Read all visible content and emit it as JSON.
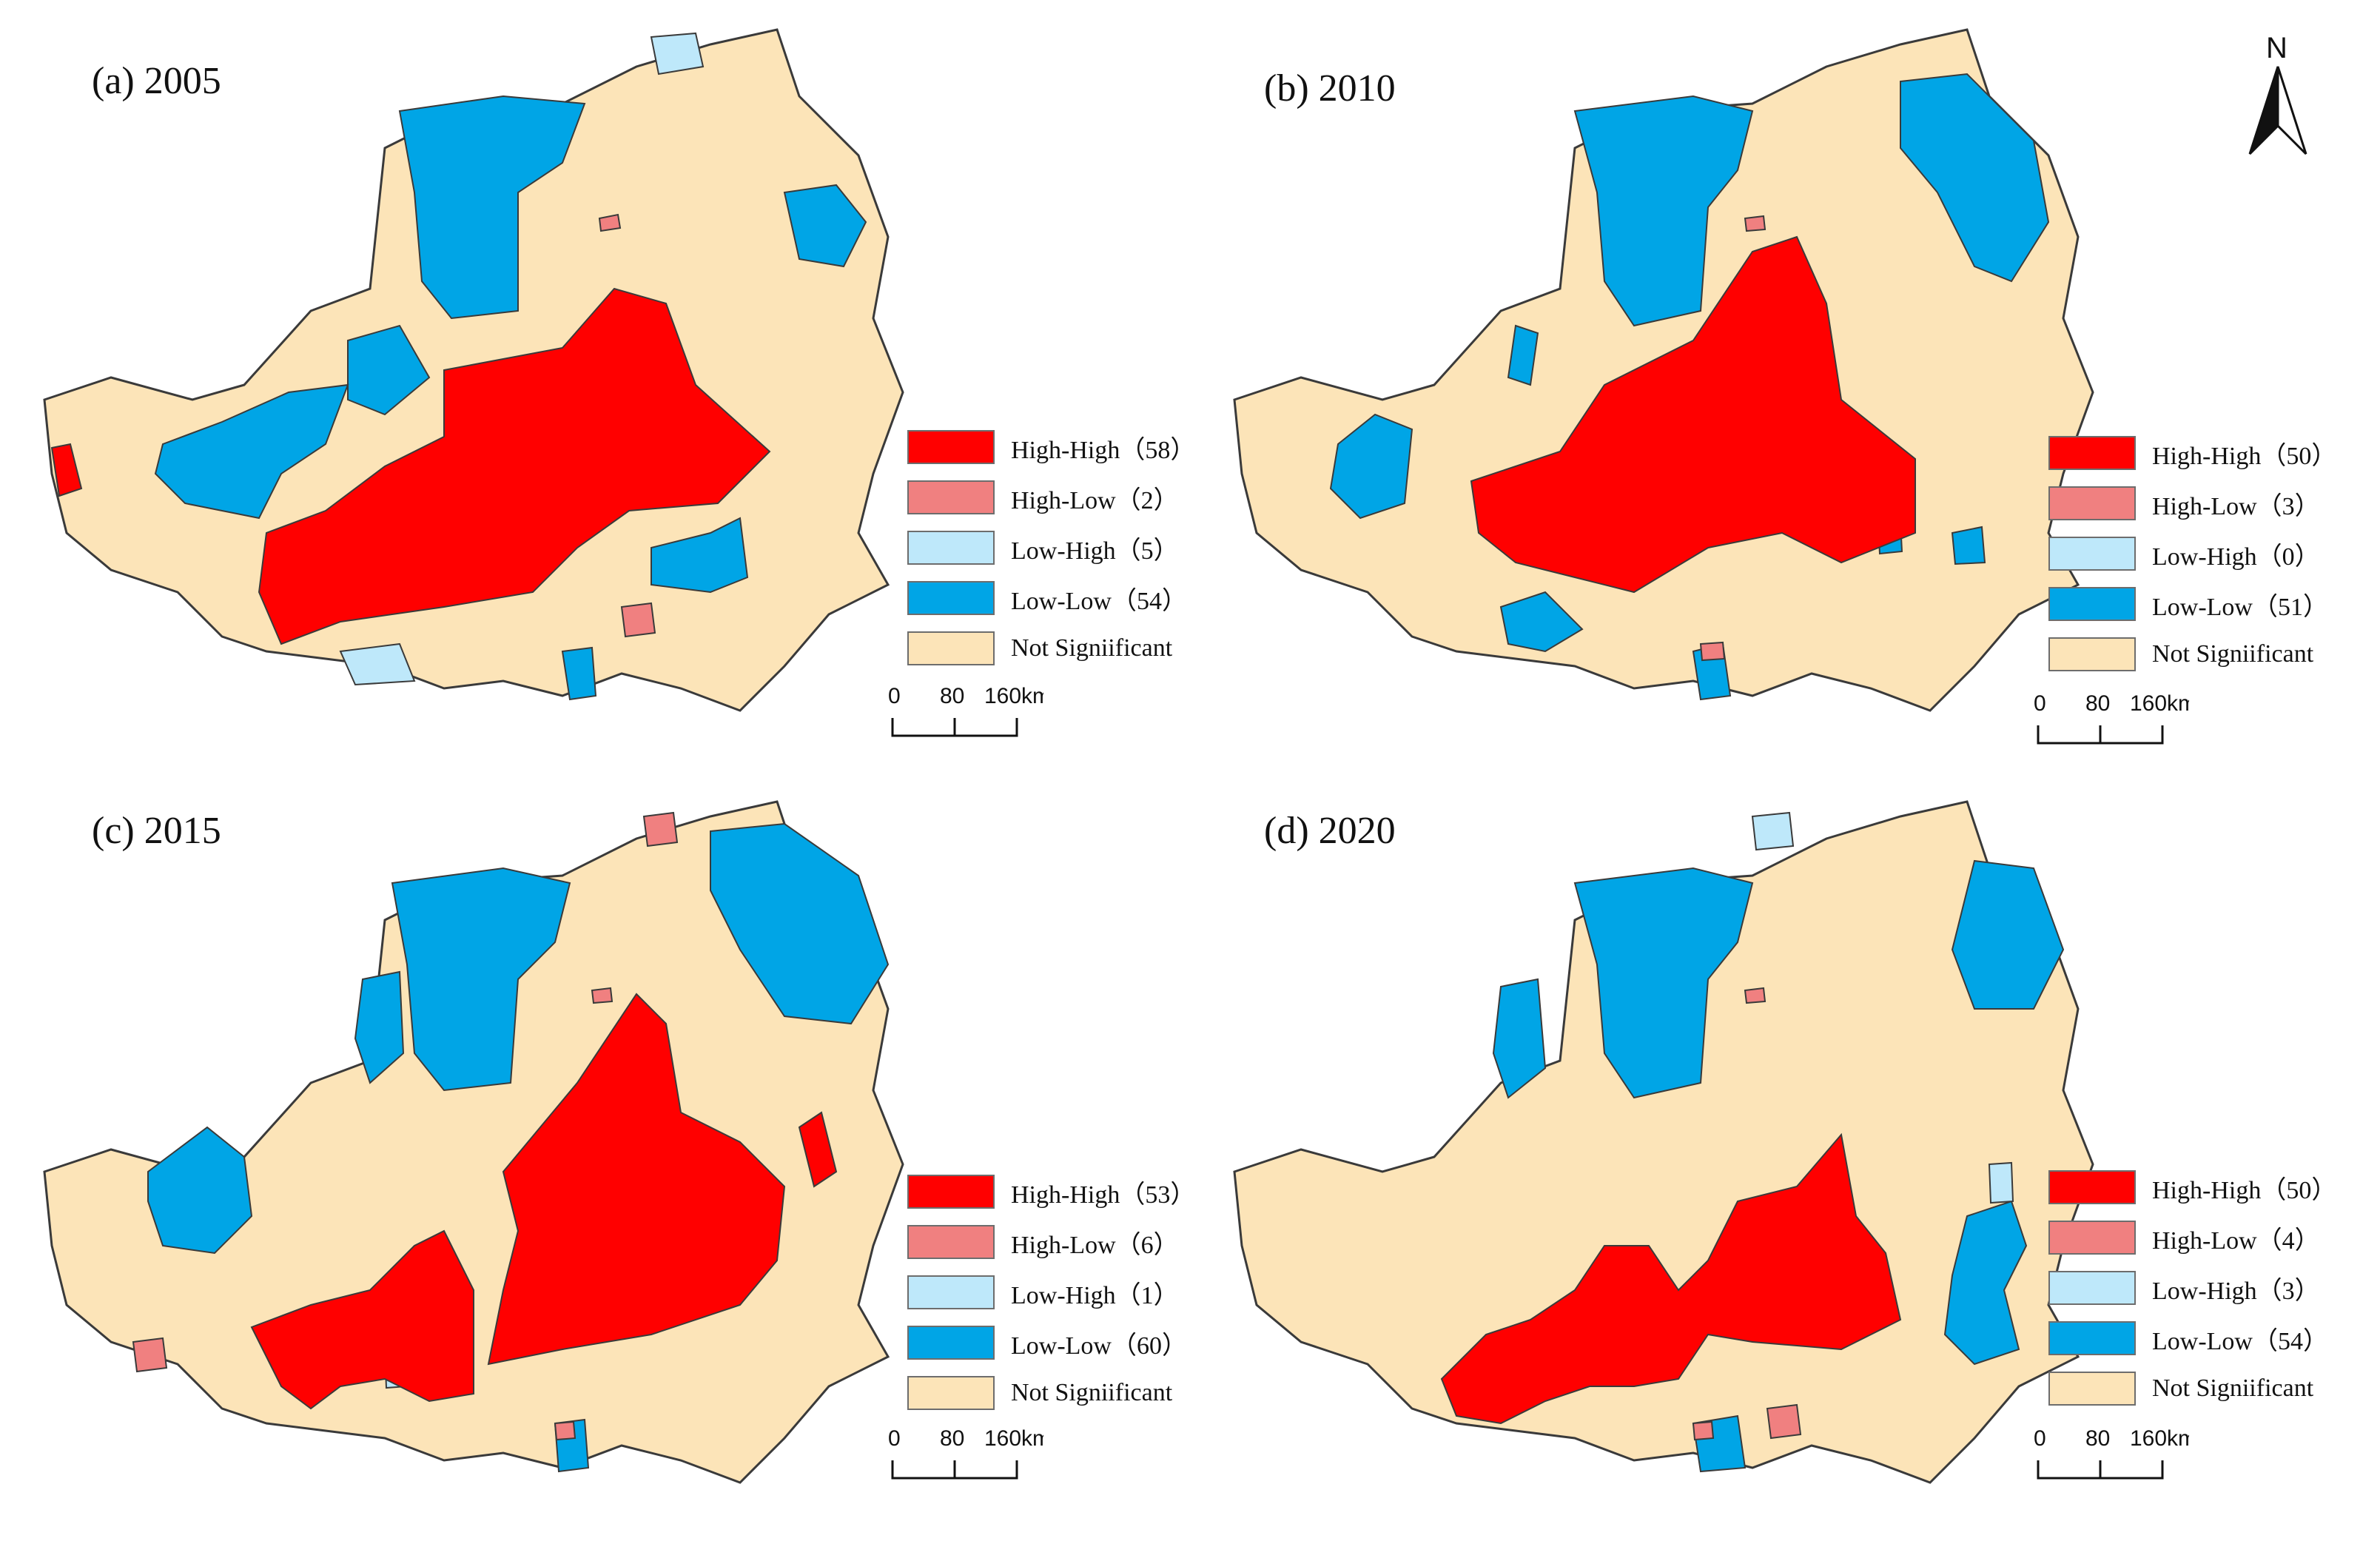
{
  "colors": {
    "high_high": "#ff0000",
    "high_low": "#f08080",
    "low_high": "#bee8fa",
    "low_low": "#00a5e6",
    "not_significant": "#fce4b8",
    "boundary": "#3a3a3a"
  },
  "north_arrow": {
    "label": "N",
    "icon": "north-arrow-icon"
  },
  "scale_bar": {
    "ticks": [
      "0",
      "80",
      "160"
    ],
    "unit": "km"
  },
  "panels": [
    {
      "title": "(a) 2005",
      "legend": [
        {
          "label": "High-High（58）",
          "color_key": "high_high"
        },
        {
          "label": "High-Low（2）",
          "color_key": "high_low"
        },
        {
          "label": "Low-High（5）",
          "color_key": "low_high"
        },
        {
          "label": "Low-Low（54）",
          "color_key": "low_low"
        },
        {
          "label": "Not Signiificant",
          "color_key": "not_significant"
        }
      ]
    },
    {
      "title": "(b) 2010",
      "legend": [
        {
          "label": "High-High（50）",
          "color_key": "high_high"
        },
        {
          "label": "High-Low（3）",
          "color_key": "high_low"
        },
        {
          "label": "Low-High（0）",
          "color_key": "low_high"
        },
        {
          "label": "Low-Low（51）",
          "color_key": "low_low"
        },
        {
          "label": "Not Signiificant",
          "color_key": "not_significant"
        }
      ]
    },
    {
      "title": "(c) 2015",
      "legend": [
        {
          "label": "High-High（53）",
          "color_key": "high_high"
        },
        {
          "label": "High-Low（6）",
          "color_key": "high_low"
        },
        {
          "label": "Low-High（1）",
          "color_key": "low_high"
        },
        {
          "label": "Low-Low（60）",
          "color_key": "low_low"
        },
        {
          "label": "Not Signiificant",
          "color_key": "not_significant"
        }
      ]
    },
    {
      "title": "(d) 2020",
      "legend": [
        {
          "label": "High-High（50）",
          "color_key": "high_high"
        },
        {
          "label": "High-Low（4）",
          "color_key": "high_low"
        },
        {
          "label": "Low-High（3）",
          "color_key": "low_high"
        },
        {
          "label": "Low-Low（54）",
          "color_key": "low_low"
        },
        {
          "label": "Not Signiificant",
          "color_key": "not_significant"
        }
      ]
    }
  ]
}
